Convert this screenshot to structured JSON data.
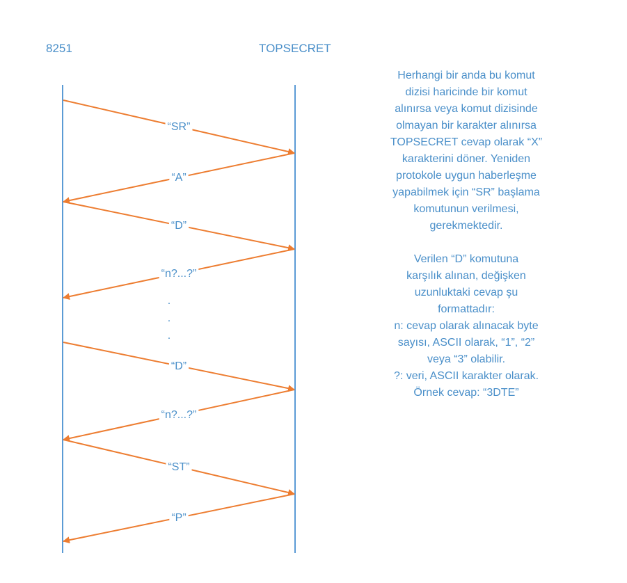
{
  "actors": {
    "left": "8251",
    "right": "TOPSECRET"
  },
  "messages": [
    {
      "label": "“SR”",
      "from": "left",
      "to": "right"
    },
    {
      "label": "“A”",
      "from": "right",
      "to": "left"
    },
    {
      "label": "“D”",
      "from": "left",
      "to": "right"
    },
    {
      "label": "“n?...?”",
      "from": "right",
      "to": "left"
    },
    {
      "label": "“D”",
      "from": "left",
      "to": "right"
    },
    {
      "label": "“n?...?”",
      "from": "right",
      "to": "left"
    },
    {
      "label": "“ST”",
      "from": "left",
      "to": "right"
    },
    {
      "label": "“P”",
      "from": "right",
      "to": "left"
    }
  ],
  "ellipsis": ".",
  "notes": {
    "paragraph1": "Herhangi bir anda bu komut\ndizisi haricinde bir komut\nalınırsa veya komut dizisinde\nolmayan bir karakter alınırsa\nTOPSECRET cevap olarak “X”\nkarakterini döner. Yeniden\nprotokole uygun haberleşme\nyapabilmek için “SR” başlama\nkomutunun verilmesi,\ngerekmektedir.",
    "paragraph2": "Verilen “D” komutuna\nkarşılık alınan, değişken\nuzunluktaki cevap şu\nformattadır:\nn: cevap olarak alınacak byte\nsayısı, ASCII olarak, “1”, “2”\nveya “3” olabilir.\n?: veri, ASCII karakter olarak.\nÖrnek cevap: “3DTE”"
  },
  "colors": {
    "lifeline": "#5b9bd5",
    "arrow": "#ed7d31",
    "text": "#4a8fc9",
    "label_background": "#ffffff"
  }
}
